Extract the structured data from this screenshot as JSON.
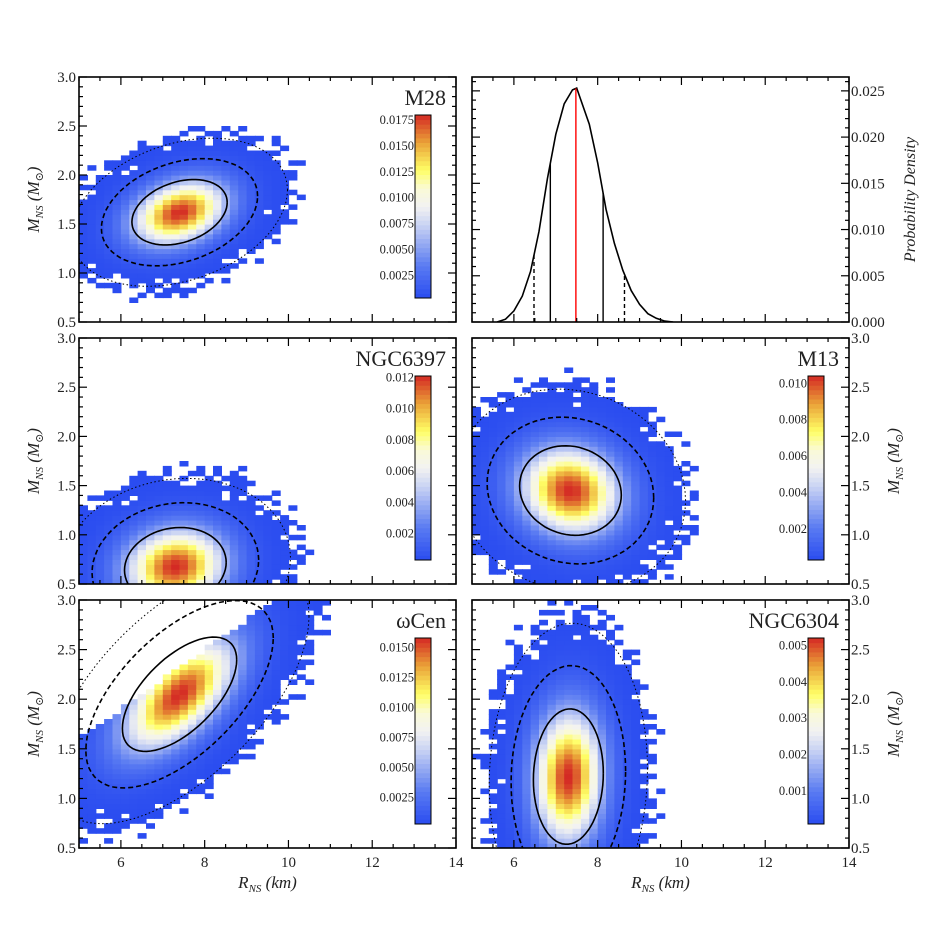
{
  "chart_data": [
    {
      "type": "heatmap",
      "title": "M28",
      "xlabel": "R_NS (km)",
      "ylabel": "M_NS (M_⊙)",
      "xlim": [
        5,
        14
      ],
      "ylim": [
        0.5,
        3.0
      ],
      "distribution": {
        "center_R": 7.4,
        "center_M": 1.62,
        "sigma_R": 0.75,
        "sigma_M": 0.22,
        "rho": 0.3
      },
      "colorbar": {
        "vmin": 0.0003,
        "vmax": 0.018,
        "ticks": [
          "0.0025",
          "0.0050",
          "0.0075",
          "0.0100",
          "0.0125",
          "0.0150",
          "0.0175"
        ]
      },
      "yticks": [
        "0.5",
        "1.0",
        "1.5",
        "2.0",
        "2.5",
        "3.0"
      ]
    },
    {
      "type": "line",
      "title": "",
      "xlim": [
        5,
        14
      ],
      "ylim": [
        0,
        0.0265
      ],
      "ylabel": "Probability Density",
      "yticks": [
        "0.000",
        "0.005",
        "0.010",
        "0.015",
        "0.020",
        "0.025"
      ],
      "x": [
        5.6,
        5.8,
        6.0,
        6.2,
        6.4,
        6.6,
        6.8,
        7.0,
        7.2,
        7.4,
        7.5,
        7.6,
        7.8,
        8.0,
        8.2,
        8.4,
        8.6,
        8.8,
        9.0,
        9.2,
        9.4,
        9.6,
        9.8
      ],
      "y": [
        0.0,
        0.0003,
        0.0012,
        0.0028,
        0.0055,
        0.0098,
        0.0155,
        0.0203,
        0.0236,
        0.0251,
        0.0253,
        0.024,
        0.0214,
        0.0172,
        0.0122,
        0.0085,
        0.0056,
        0.0034,
        0.0019,
        0.0009,
        0.0004,
        0.0001,
        0.0
      ],
      "vlines": [
        {
          "x": 6.48,
          "style": "dashed",
          "color": "#000000"
        },
        {
          "x": 6.87,
          "style": "solid",
          "color": "#000000"
        },
        {
          "x": 7.48,
          "style": "solid",
          "color": "#ff0000"
        },
        {
          "x": 8.13,
          "style": "solid",
          "color": "#000000"
        },
        {
          "x": 8.64,
          "style": "dashed",
          "color": "#000000"
        }
      ]
    },
    {
      "type": "heatmap",
      "title": "NGC6397",
      "xlim": [
        5,
        14
      ],
      "ylim": [
        0.5,
        3.0
      ],
      "distribution": {
        "center_R": 7.3,
        "center_M": 0.68,
        "sigma_R": 0.8,
        "sigma_M": 0.26,
        "rho": 0.1
      },
      "colorbar": {
        "vmin": 0.0003,
        "vmax": 0.0121,
        "ticks": [
          "0.002",
          "0.004",
          "0.006",
          "0.008",
          "0.010",
          "0.012"
        ]
      },
      "yticks": [
        "0.5",
        "1.0",
        "1.5",
        "2.0",
        "2.5",
        "3.0"
      ]
    },
    {
      "type": "heatmap",
      "title": "M13",
      "xlim": [
        5,
        14
      ],
      "ylim": [
        0.5,
        3.0
      ],
      "distribution": {
        "center_R": 7.35,
        "center_M": 1.45,
        "sigma_R": 0.8,
        "sigma_M": 0.3,
        "rho": -0.1
      },
      "colorbar": {
        "vmin": 0.0003,
        "vmax": 0.0104,
        "ticks": [
          "0.002",
          "0.004",
          "0.006",
          "0.008",
          "0.010"
        ]
      },
      "yticks": [
        "0.5",
        "1.0",
        "1.5",
        "2.0",
        "2.5",
        "3.0"
      ]
    },
    {
      "type": "heatmap",
      "title": "ωCen",
      "xlim": [
        5,
        14
      ],
      "ylim": [
        0.5,
        3.0
      ],
      "distribution": {
        "center_R": 7.4,
        "center_M": 2.05,
        "sigma_R": 0.9,
        "sigma_M": 0.38,
        "rho": 0.6,
        "cut_slope": 0.3,
        "cut_intercept": 0.1
      },
      "colorbar": {
        "vmin": 0.0003,
        "vmax": 0.0158,
        "ticks": [
          "0.0025",
          "0.0050",
          "0.0075",
          "0.0100",
          "0.0125",
          "0.0150"
        ]
      },
      "yticks": [
        "0.5",
        "1.0",
        "1.5",
        "2.0",
        "2.5",
        "3.0"
      ]
    },
    {
      "type": "heatmap",
      "title": "NGC6304",
      "xlim": [
        5,
        14
      ],
      "ylim": [
        0.5,
        3.0
      ],
      "distribution": {
        "center_R": 7.3,
        "center_M": 1.22,
        "sigma_R": 0.55,
        "sigma_M": 0.45,
        "rho": 0.05
      },
      "colorbar": {
        "vmin": 0.0001,
        "vmax": 0.0052,
        "ticks": [
          "0.001",
          "0.002",
          "0.003",
          "0.004",
          "0.005"
        ]
      },
      "yticks": [
        "0.5",
        "1.0",
        "1.5",
        "2.0",
        "2.5",
        "3.0"
      ]
    }
  ],
  "axes": {
    "xticks": [
      "6",
      "8",
      "10",
      "12",
      "14"
    ],
    "xlabel": {
      "main": "R",
      "sub": "NS",
      "unit": " (km)"
    },
    "ylabel": {
      "main": "M",
      "sub": "NS",
      "open": " (M",
      "unit_sub": "⊙",
      "close": ")"
    },
    "density_label": "Probability Density"
  },
  "colormap": [
    "#2a4cf0",
    "#5b7cf2",
    "#c9d3f3",
    "#f2f2f2",
    "#fafad6",
    "#ffff66",
    "#eaa238",
    "#d42a24"
  ]
}
